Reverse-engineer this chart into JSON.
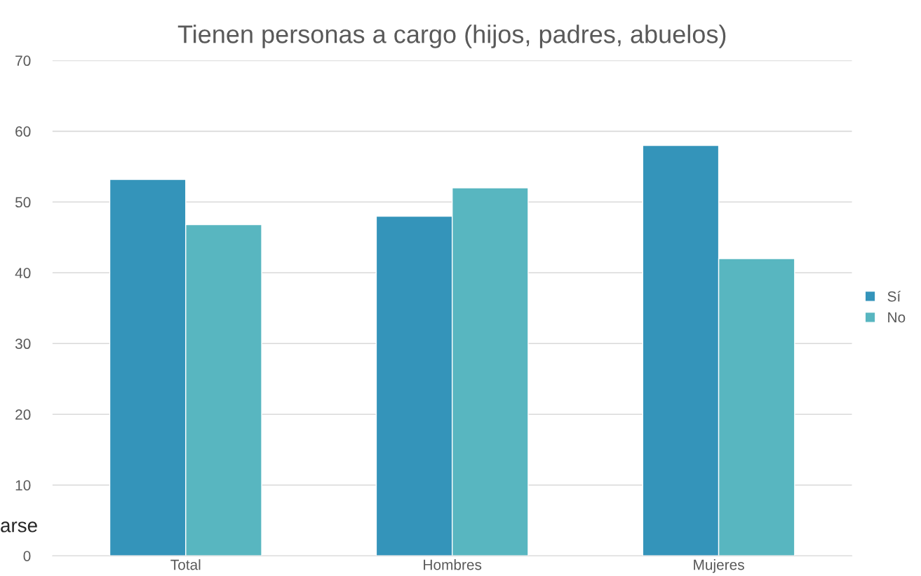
{
  "chart_data": {
    "type": "bar",
    "title": "Tienen personas a cargo (hijos, padres, abuelos)",
    "categories": [
      "Total",
      "Hombres",
      "Mujeres"
    ],
    "series": [
      {
        "name": "Sí",
        "color": "#3494ba",
        "values": [
          53.2,
          48,
          58
        ]
      },
      {
        "name": "No",
        "color": "#58b6c0",
        "values": [
          46.8,
          52,
          42
        ]
      }
    ],
    "ylim": [
      0,
      70
    ],
    "yticks": [
      0,
      10,
      20,
      30,
      40,
      50,
      60,
      70
    ],
    "grid": "y",
    "legend": "right",
    "annotations": [
      "arse"
    ]
  }
}
